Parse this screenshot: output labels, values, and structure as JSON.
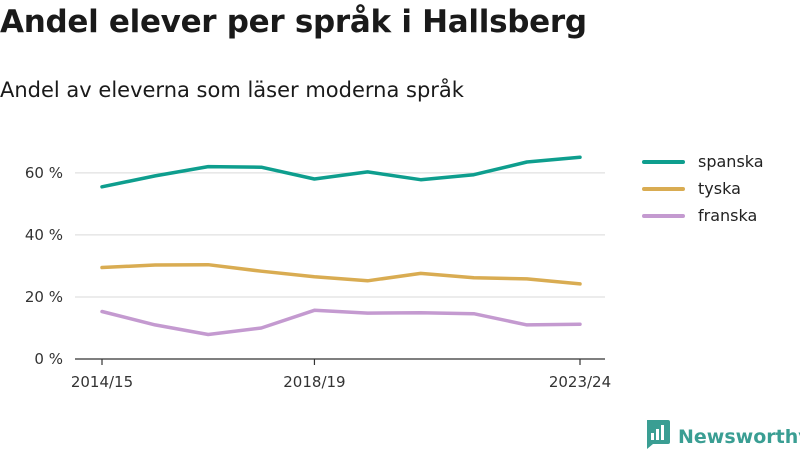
{
  "header": {
    "title": "Andel elever per språk i Hallsberg",
    "subtitle": "Andel av eleverna som läser moderna språk"
  },
  "brand": {
    "name": "Newsworthy",
    "icon": "newsworthy-logo-icon",
    "color": "#3a9e93"
  },
  "chart_data": {
    "type": "line",
    "title": "Andel elever per språk i Hallsberg",
    "subtitle": "Andel av eleverna som läser moderna språk",
    "xlabel": "",
    "ylabel": "",
    "x": [
      "2014/15",
      "2015/16",
      "2016/17",
      "2017/18",
      "2018/19",
      "2019/20",
      "2020/21",
      "2021/22",
      "2022/23",
      "2023/24"
    ],
    "x_tick_labels": [
      "2014/15",
      "2018/19",
      "2023/24"
    ],
    "y_ticks": [
      0,
      20,
      40,
      60
    ],
    "y_tick_labels": [
      "0 %",
      "20 %",
      "40 %",
      "60 %"
    ],
    "ylim": [
      0,
      68
    ],
    "grid": true,
    "legend": "right",
    "series": [
      {
        "name": "spanska",
        "color": "#0e9e8e",
        "values": [
          55.5,
          59.0,
          62.0,
          61.8,
          58.0,
          60.3,
          57.8,
          59.4,
          63.5,
          65.0
        ]
      },
      {
        "name": "tyska",
        "color": "#d9ac52",
        "values": [
          29.5,
          30.3,
          30.4,
          28.3,
          26.5,
          25.2,
          27.6,
          26.2,
          25.8,
          24.2
        ]
      },
      {
        "name": "franska",
        "color": "#c49ad0",
        "values": [
          15.3,
          11.0,
          7.9,
          10.0,
          15.7,
          14.8,
          14.9,
          14.6,
          11.0,
          11.2
        ]
      }
    ]
  }
}
